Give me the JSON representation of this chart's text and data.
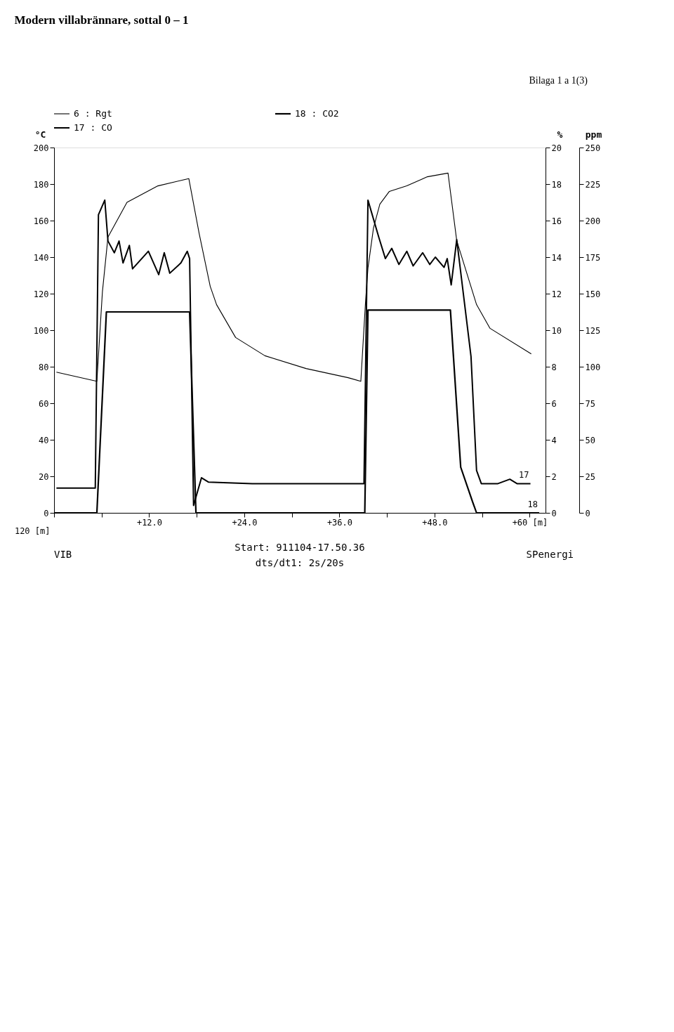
{
  "chart_data": {
    "type": "line",
    "title": "Modern villabrännare, sottal 0 – 1",
    "ylabel": "°C",
    "y2label": "%",
    "y3label": "ppm",
    "xlabel": "120 [m]",
    "xlim": [
      0,
      62
    ],
    "xticks": [
      {
        "value": 0,
        "label": null
      },
      {
        "value": 6,
        "label": null
      },
      {
        "value": 12,
        "label": "+12.0"
      },
      {
        "value": 18,
        "label": null
      },
      {
        "value": 24,
        "label": "+24.0"
      },
      {
        "value": 30,
        "label": null
      },
      {
        "value": 36,
        "label": "+36.0"
      },
      {
        "value": 42,
        "label": null
      },
      {
        "value": 48,
        "label": "+48.0"
      },
      {
        "value": 54,
        "label": null
      },
      {
        "value": 60,
        "label": "+60 [m]"
      }
    ],
    "ylim": [
      0,
      200
    ],
    "yticks": [
      0,
      20,
      40,
      60,
      80,
      100,
      120,
      140,
      160,
      180,
      200
    ],
    "y2lim": [
      0,
      20
    ],
    "y2ticks": [
      0,
      2,
      4,
      6,
      8,
      10,
      12,
      14,
      16,
      18,
      20
    ],
    "y3lim": [
      0,
      250
    ],
    "y3ticks": [
      0,
      25,
      50,
      75,
      100,
      125,
      150,
      175,
      200,
      225,
      250
    ],
    "grid": false,
    "legend": "top left",
    "marker": "none",
    "line_style": "solid",
    "series": [
      {
        "name": "6 : Rgt",
        "color": "#000000",
        "axis": "y",
        "x": [
          0.3,
          5.4,
          6.1,
          6.8,
          9.2,
          13.1,
          17.0,
          18.3,
          19.7,
          20.5,
          22.9,
          26.6,
          31.8,
          37.1,
          38.7,
          39.3,
          39.6,
          40.3,
          41.1,
          42.3,
          44.5,
          47.1,
          49.7,
          50.8,
          53.3,
          55.0,
          60.2
        ],
        "values": [
          77,
          72,
          121,
          151,
          170,
          179,
          183,
          153,
          124,
          114,
          96,
          86,
          79,
          74,
          72,
          116,
          134,
          156,
          169,
          176,
          179,
          184,
          186,
          149,
          114,
          101,
          87
        ]
      },
      {
        "name": "17 : CO",
        "color": "#000000",
        "axis": "y3",
        "x": [
          0.3,
          5.2,
          5.6,
          6.4,
          6.8,
          7.6,
          8.2,
          8.7,
          9.5,
          9.9,
          11.9,
          13.2,
          13.9,
          14.6,
          16.0,
          16.8,
          17.1,
          17.6,
          18.6,
          19.5,
          25.0,
          30.0,
          35.0,
          39.1,
          39.6,
          41.0,
          41.8,
          42.6,
          43.5,
          44.5,
          45.3,
          46.5,
          47.4,
          48.1,
          49.2,
          49.6,
          50.1,
          50.8,
          52.6,
          53.3,
          53.9,
          56.0,
          57.5,
          58.4,
          60.1
        ],
        "values": [
          17,
          17,
          204,
          214,
          186,
          178,
          186,
          171,
          183,
          167,
          179,
          163,
          178,
          164,
          171,
          179,
          174,
          5,
          24,
          21,
          20,
          20,
          20,
          20,
          214,
          188,
          174,
          181,
          170,
          179,
          169,
          178,
          170,
          175,
          168,
          174,
          156,
          187,
          107,
          29,
          20,
          20,
          23,
          20,
          20
        ]
      },
      {
        "name": "18 : CO2",
        "color": "#000000",
        "axis": "y2",
        "x": [
          0,
          5.4,
          6.6,
          17.1,
          17.9,
          39.2,
          39.6,
          50.0,
          51.3,
          52.8,
          53.3,
          61.2
        ],
        "values": [
          0,
          0,
          11.0,
          11.0,
          0,
          0,
          11.1,
          11.1,
          2.5,
          0.6,
          0,
          0
        ]
      }
    ],
    "annotations": [
      "Bilaga 1 a 1(3)",
      {
        "text": "17",
        "x": 60.1,
        "y": 16
      },
      {
        "text": "18",
        "x": 61.2,
        "y": 0
      },
      "VIB",
      "Start: 911104-17.50.36",
      "dts/dt1: 2s/20s",
      "SPenergi"
    ]
  }
}
